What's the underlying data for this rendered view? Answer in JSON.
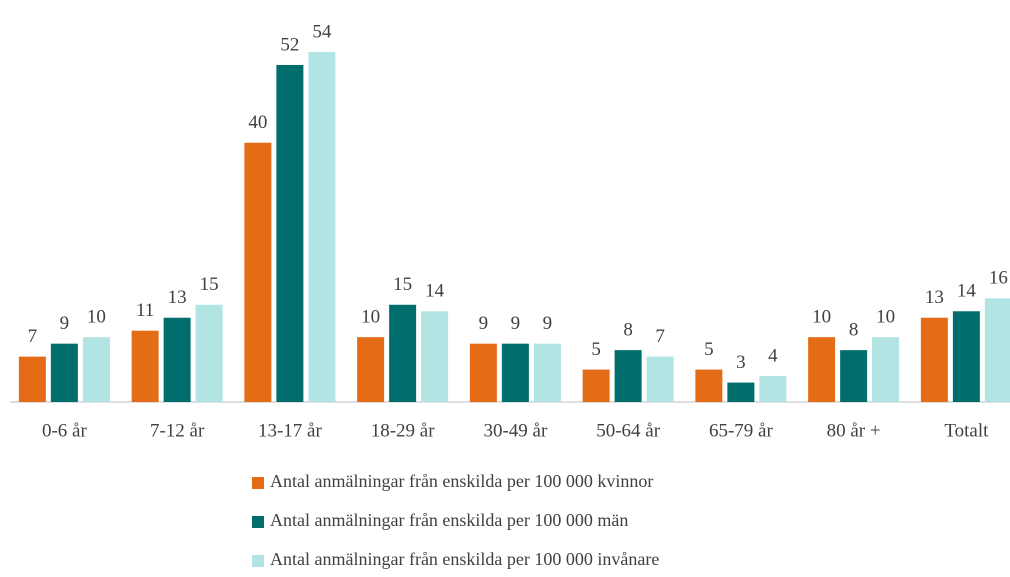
{
  "chart_data": {
    "type": "bar",
    "categories": [
      "0-6 år",
      "7-12 år",
      "13-17 år",
      "18-29 år",
      "30-49 år",
      "50-64 år",
      "65-79 år",
      "80 år +",
      "Totalt"
    ],
    "series": [
      {
        "name": "Antal anmälningar från enskilda per 100 000 kvinnor",
        "color": "#e46c17",
        "values": [
          7,
          11,
          40,
          10,
          9,
          5,
          5,
          10,
          13
        ]
      },
      {
        "name": "Antal anmälningar från enskilda per 100 000 män",
        "color": "#006d6d",
        "values": [
          9,
          13,
          52,
          15,
          9,
          8,
          3,
          8,
          14
        ]
      },
      {
        "name": "Antal anmälningar från enskilda per 100 000 invånare",
        "color": "#b1e4e3",
        "values": [
          10,
          15,
          54,
          14,
          9,
          7,
          4,
          10,
          16
        ]
      }
    ]
  }
}
